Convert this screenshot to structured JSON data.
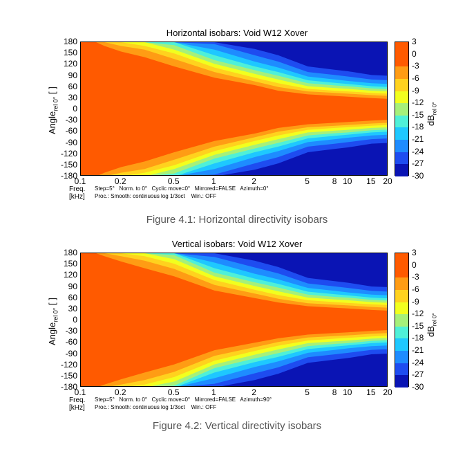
{
  "chart_data": [
    {
      "type": "heatmap",
      "title": "Horizontal isobars: Void  W12  Xover",
      "xlabel": "Freq.",
      "xlabel_unit": "[kHz]",
      "ylabel_main": "Angle",
      "ylabel_sub": "rel 0°",
      "ylabel_unit": "[ ]",
      "x_scale": "log",
      "xlim": [
        0.1,
        20
      ],
      "x_ticks": [
        0.1,
        0.2,
        0.5,
        1,
        2,
        5,
        8,
        10,
        15,
        20
      ],
      "x_tick_labels": [
        "0.1",
        "0.2",
        "0.5",
        "1",
        "2",
        "5",
        "8",
        "10",
        "15",
        "20"
      ],
      "ylim": [
        -180,
        180
      ],
      "y_ticks": [
        180,
        150,
        120,
        90,
        60,
        30,
        0,
        -30,
        -60,
        -90,
        -120,
        -150,
        -180
      ],
      "y_tick_labels": [
        "180",
        "150",
        "120",
        "90",
        "60",
        "30",
        "0",
        "-30",
        "-60",
        "-90",
        "-120",
        "-150",
        "-180"
      ],
      "info_line1": "Step=5°   Norm. to 0°   Cyclic move=0°   Mirrored=FALSE   Azimuth=0°",
      "info_line2": "Proc.: Smooth: continuous log 1/3oct    Win.: OFF",
      "colorbar": {
        "label_main": "dB",
        "label_sub": "rel 0°",
        "ticks": [
          3,
          0,
          -3,
          -6,
          -9,
          -12,
          -15,
          -18,
          -21,
          -24,
          -27,
          -30
        ],
        "tick_labels": [
          "3",
          "0",
          "-3",
          "-6",
          "-9",
          "-12",
          "-15",
          "-18",
          "-21",
          "-24",
          "-27",
          "-30"
        ],
        "levels": [
          {
            "from": 3,
            "to": -3,
            "color": "#ff5a00"
          },
          {
            "from": -3,
            "to": -6,
            "color": "#ff9c14"
          },
          {
            "from": -6,
            "to": -9,
            "color": "#ffd21e"
          },
          {
            "from": -9,
            "to": -12,
            "color": "#f2ff1e"
          },
          {
            "from": -12,
            "to": -15,
            "color": "#a6f07a"
          },
          {
            "from": -15,
            "to": -18,
            "color": "#4ff0d8"
          },
          {
            "from": -18,
            "to": -21,
            "color": "#1ec8ff"
          },
          {
            "from": -21,
            "to": -24,
            "color": "#1e8cff"
          },
          {
            "from": -24,
            "to": -27,
            "color": "#1e4cf0"
          },
          {
            "from": -27,
            "to": -30,
            "color": "#0a14b4"
          }
        ]
      },
      "contours_beamwidth_deg": [
        {
          "level": -3,
          "freq_khz": [
            0.1,
            0.13,
            0.15,
            0.2,
            0.3,
            0.5,
            1,
            2,
            3,
            5,
            8,
            10,
            15,
            20
          ],
          "half_angle": [
            180,
            180,
            170,
            155,
            140,
            115,
            85,
            65,
            50,
            40,
            36,
            34,
            30,
            28
          ]
        },
        {
          "level": -6,
          "freq_khz": [
            0.1,
            0.13,
            0.15,
            0.2,
            0.3,
            0.5,
            1,
            2,
            3,
            5,
            8,
            10,
            15,
            20
          ],
          "half_angle": [
            180,
            180,
            180,
            170,
            160,
            135,
            100,
            75,
            60,
            48,
            44,
            42,
            38,
            36
          ]
        },
        {
          "level": -9,
          "freq_khz": [
            0.1,
            0.13,
            0.15,
            0.2,
            0.3,
            0.5,
            1,
            2,
            3,
            5,
            8,
            10,
            15,
            20
          ],
          "half_angle": [
            180,
            180,
            180,
            180,
            170,
            150,
            112,
            85,
            70,
            55,
            50,
            48,
            44,
            42
          ]
        },
        {
          "level": -12,
          "freq_khz": [
            0.1,
            0.13,
            0.15,
            0.2,
            0.3,
            0.5,
            1,
            2,
            3,
            5,
            8,
            10,
            15,
            20
          ],
          "half_angle": [
            180,
            180,
            180,
            180,
            180,
            160,
            122,
            95,
            80,
            62,
            57,
            55,
            50,
            48
          ]
        },
        {
          "level": -15,
          "freq_khz": [
            0.1,
            0.13,
            0.15,
            0.2,
            0.3,
            0.5,
            1,
            2,
            3,
            5,
            8,
            10,
            15,
            20
          ],
          "half_angle": [
            180,
            180,
            180,
            180,
            180,
            172,
            132,
            105,
            90,
            70,
            64,
            62,
            56,
            54
          ]
        },
        {
          "level": -18,
          "freq_khz": [
            0.1,
            0.13,
            0.15,
            0.2,
            0.3,
            0.5,
            1,
            2,
            3,
            5,
            8,
            10,
            15,
            20
          ],
          "half_angle": [
            180,
            180,
            180,
            180,
            180,
            180,
            145,
            115,
            100,
            78,
            71,
            68,
            62,
            60
          ]
        },
        {
          "level": -21,
          "freq_khz": [
            0.1,
            0.13,
            0.15,
            0.2,
            0.3,
            0.5,
            1,
            2,
            3,
            5,
            8,
            10,
            15,
            20
          ],
          "half_angle": [
            180,
            180,
            180,
            180,
            180,
            180,
            160,
            128,
            112,
            88,
            80,
            76,
            70,
            68
          ]
        },
        {
          "level": -24,
          "freq_khz": [
            0.1,
            0.13,
            0.15,
            0.2,
            0.3,
            0.5,
            1,
            2,
            3,
            5,
            8,
            10,
            15,
            20
          ],
          "half_angle": [
            180,
            180,
            180,
            180,
            180,
            180,
            175,
            145,
            128,
            100,
            92,
            88,
            80,
            78
          ]
        },
        {
          "level": -27,
          "freq_khz": [
            0.1,
            0.13,
            0.15,
            0.2,
            0.3,
            0.5,
            1,
            2,
            3,
            5,
            8,
            10,
            15,
            20
          ],
          "half_angle": [
            180,
            180,
            180,
            180,
            180,
            180,
            180,
            162,
            145,
            115,
            106,
            102,
            92,
            90
          ]
        }
      ],
      "caption": "Figure 4.1: Horizontal directivity isobars"
    },
    {
      "type": "heatmap",
      "title": "Vertical isobars: Void  W12  Xover",
      "xlabel": "Freq.",
      "xlabel_unit": "[kHz]",
      "ylabel_main": "Angle",
      "ylabel_sub": "rel 0°",
      "ylabel_unit": "[ ]",
      "x_scale": "log",
      "xlim": [
        0.1,
        20
      ],
      "x_ticks": [
        0.1,
        0.2,
        0.5,
        1,
        2,
        5,
        8,
        10,
        15,
        20
      ],
      "x_tick_labels": [
        "0.1",
        "0.2",
        "0.5",
        "1",
        "2",
        "5",
        "8",
        "10",
        "15",
        "20"
      ],
      "ylim": [
        -180,
        180
      ],
      "y_ticks": [
        180,
        150,
        120,
        90,
        60,
        30,
        0,
        -30,
        -60,
        -90,
        -120,
        -150,
        -180
      ],
      "y_tick_labels": [
        "180",
        "150",
        "120",
        "90",
        "60",
        "30",
        "0",
        "-30",
        "-60",
        "-90",
        "-120",
        "-150",
        "-180"
      ],
      "info_line1": "Step=5°   Norm. to 0°   Cyclic move=0°   Mirrored=FALSE   Azimuth=90°",
      "info_line2": "Proc.: Smooth: continuous log 1/3oct    Win.: OFF",
      "colorbar": {
        "label_main": "dB",
        "label_sub": "rel 0°",
        "ticks": [
          3,
          0,
          -3,
          -6,
          -9,
          -12,
          -15,
          -18,
          -21,
          -24,
          -27,
          -30
        ],
        "tick_labels": [
          "3",
          "0",
          "-3",
          "-6",
          "-9",
          "-12",
          "-15",
          "-18",
          "-21",
          "-24",
          "-27",
          "-30"
        ],
        "levels": [
          {
            "from": 3,
            "to": -3,
            "color": "#ff5a00"
          },
          {
            "from": -3,
            "to": -6,
            "color": "#ff9c14"
          },
          {
            "from": -6,
            "to": -9,
            "color": "#ffd21e"
          },
          {
            "from": -9,
            "to": -12,
            "color": "#f2ff1e"
          },
          {
            "from": -12,
            "to": -15,
            "color": "#a6f07a"
          },
          {
            "from": -15,
            "to": -18,
            "color": "#4ff0d8"
          },
          {
            "from": -18,
            "to": -21,
            "color": "#1ec8ff"
          },
          {
            "from": -21,
            "to": -24,
            "color": "#1e8cff"
          },
          {
            "from": -24,
            "to": -27,
            "color": "#1e4cf0"
          },
          {
            "from": -27,
            "to": -30,
            "color": "#0a14b4"
          }
        ]
      },
      "contours_beamwidth_deg": [
        {
          "level": -3,
          "freq_khz": [
            0.1,
            0.13,
            0.15,
            0.2,
            0.3,
            0.5,
            1,
            2,
            3,
            5,
            8,
            10,
            15,
            20
          ],
          "half_angle": [
            180,
            180,
            172,
            158,
            140,
            118,
            80,
            60,
            48,
            38,
            34,
            32,
            28,
            26
          ]
        },
        {
          "level": -6,
          "freq_khz": [
            0.1,
            0.13,
            0.15,
            0.2,
            0.3,
            0.5,
            1,
            2,
            3,
            5,
            8,
            10,
            15,
            20
          ],
          "half_angle": [
            180,
            180,
            180,
            172,
            160,
            138,
            95,
            72,
            58,
            46,
            42,
            40,
            36,
            34
          ]
        },
        {
          "level": -9,
          "freq_khz": [
            0.1,
            0.13,
            0.15,
            0.2,
            0.3,
            0.5,
            1,
            2,
            3,
            5,
            8,
            10,
            15,
            20
          ],
          "half_angle": [
            180,
            180,
            180,
            180,
            172,
            152,
            108,
            82,
            68,
            54,
            49,
            47,
            43,
            41
          ]
        },
        {
          "level": -12,
          "freq_khz": [
            0.1,
            0.13,
            0.15,
            0.2,
            0.3,
            0.5,
            1,
            2,
            3,
            5,
            8,
            10,
            15,
            20
          ],
          "half_angle": [
            180,
            180,
            180,
            180,
            180,
            164,
            118,
            92,
            78,
            61,
            56,
            54,
            49,
            47
          ]
        },
        {
          "level": -15,
          "freq_khz": [
            0.1,
            0.13,
            0.15,
            0.2,
            0.3,
            0.5,
            1,
            2,
            3,
            5,
            8,
            10,
            15,
            20
          ],
          "half_angle": [
            180,
            180,
            180,
            180,
            180,
            175,
            128,
            102,
            88,
            69,
            63,
            61,
            55,
            53
          ]
        },
        {
          "level": -18,
          "freq_khz": [
            0.1,
            0.13,
            0.15,
            0.2,
            0.3,
            0.5,
            1,
            2,
            3,
            5,
            8,
            10,
            15,
            20
          ],
          "half_angle": [
            180,
            180,
            180,
            180,
            180,
            180,
            140,
            112,
            98,
            77,
            70,
            67,
            61,
            59
          ]
        },
        {
          "level": -21,
          "freq_khz": [
            0.1,
            0.13,
            0.15,
            0.2,
            0.3,
            0.5,
            1,
            2,
            3,
            5,
            8,
            10,
            15,
            20
          ],
          "half_angle": [
            180,
            180,
            180,
            180,
            180,
            180,
            155,
            125,
            110,
            87,
            79,
            75,
            69,
            67
          ]
        },
        {
          "level": -24,
          "freq_khz": [
            0.1,
            0.13,
            0.15,
            0.2,
            0.3,
            0.5,
            1,
            2,
            3,
            5,
            8,
            10,
            15,
            20
          ],
          "half_angle": [
            180,
            180,
            180,
            180,
            180,
            180,
            170,
            142,
            126,
            99,
            91,
            87,
            79,
            77
          ]
        },
        {
          "level": -27,
          "freq_khz": [
            0.1,
            0.13,
            0.15,
            0.2,
            0.3,
            0.5,
            1,
            2,
            3,
            5,
            8,
            10,
            15,
            20
          ],
          "half_angle": [
            180,
            180,
            180,
            180,
            180,
            180,
            180,
            160,
            143,
            114,
            105,
            101,
            91,
            89
          ]
        }
      ],
      "caption": "Figure 4.2: Vertical directivity isobars"
    }
  ]
}
